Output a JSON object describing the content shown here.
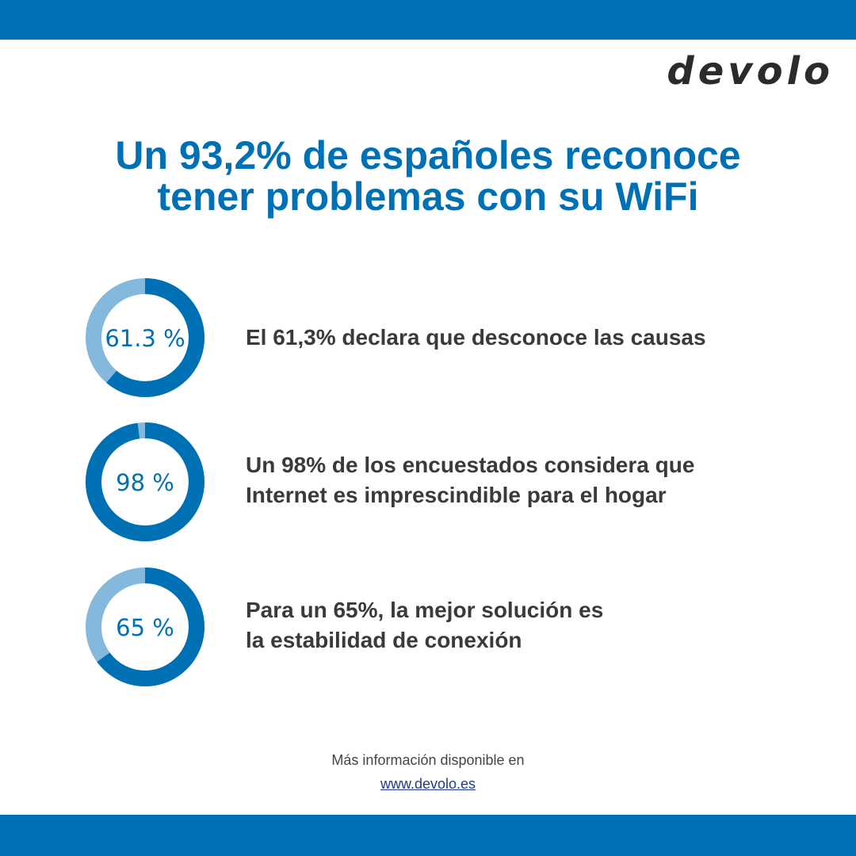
{
  "colors": {
    "brand_blue": "#0070b5",
    "ring_light": "#84b9dd",
    "logo": "#2b2b2b",
    "body_text": "#3a3a3a",
    "footer_text": "#444444",
    "link": "#1f3a93"
  },
  "header": {
    "logo_text": "devolo"
  },
  "headline": {
    "line1": "Un 93,2% de españoles reconoce",
    "line2": "tener problemas con su WiFi"
  },
  "chart_data": {
    "type": "pie",
    "stats": [
      {
        "value": 61.3,
        "label": "61.3 %",
        "text": [
          "El 61,3% declara que desconoce las causas"
        ]
      },
      {
        "value": 98,
        "label": "98 %",
        "text": [
          "Un 98% de los encuestados considera que",
          "Internet es imprescindible para el hogar"
        ]
      },
      {
        "value": 65,
        "label": "65 %",
        "text": [
          "Para un 65%, la mejor solución es",
          "la estabilidad de conexión"
        ]
      }
    ]
  },
  "footer": {
    "info": "Más información disponible en",
    "link": "www.devolo.es"
  }
}
